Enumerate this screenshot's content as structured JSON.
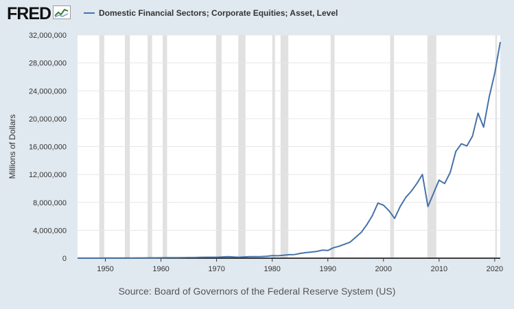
{
  "logo": {
    "text": "FRED",
    "icon": "line-chart-icon"
  },
  "source_text": "Source: Board of Governors of the Federal Reserve System (US)",
  "colors": {
    "background": "#e1e9f0",
    "plot_background": "#ffffff",
    "line": "#4572a7",
    "recession": "#e1e1e1",
    "axis_text": "#333333"
  },
  "chart_data": {
    "type": "line",
    "title": "",
    "xlabel": "",
    "ylabel": "Millions of Dollars",
    "xlim": [
      1945,
      2021
    ],
    "ylim": [
      0,
      32000000
    ],
    "grid": true,
    "legend": "top-left",
    "x_ticks": [
      1950,
      1960,
      1970,
      1980,
      1990,
      2000,
      2010,
      2020
    ],
    "y_ticks": [
      0,
      4000000,
      8000000,
      12000000,
      16000000,
      20000000,
      24000000,
      28000000,
      32000000
    ],
    "y_tick_labels": [
      "0",
      "4,000,000",
      "8,000,000",
      "12,000,000",
      "16,000,000",
      "20,000,000",
      "24,000,000",
      "28,000,000",
      "32,000,000"
    ],
    "recessions": [
      [
        1948.9,
        1949.8
      ],
      [
        1953.5,
        1954.4
      ],
      [
        1957.6,
        1958.4
      ],
      [
        1960.3,
        1961.1
      ],
      [
        1969.9,
        1970.9
      ],
      [
        1973.9,
        1975.2
      ],
      [
        1980.0,
        1980.5
      ],
      [
        1981.5,
        1982.9
      ],
      [
        1990.5,
        1991.2
      ],
      [
        2001.2,
        2001.9
      ],
      [
        2007.9,
        2009.5
      ],
      [
        2020.1,
        2020.4
      ]
    ],
    "series": [
      {
        "name": "Domestic Financial Sectors; Corporate Equities; Asset, Level",
        "x": [
          1945,
          1946,
          1947,
          1948,
          1949,
          1950,
          1951,
          1952,
          1953,
          1954,
          1955,
          1956,
          1957,
          1958,
          1959,
          1960,
          1961,
          1962,
          1963,
          1964,
          1965,
          1966,
          1967,
          1968,
          1969,
          1970,
          1971,
          1972,
          1973,
          1974,
          1975,
          1976,
          1977,
          1978,
          1979,
          1980,
          1981,
          1982,
          1983,
          1984,
          1985,
          1986,
          1987,
          1988,
          1989,
          1990,
          1991,
          1992,
          1993,
          1994,
          1995,
          1996,
          1997,
          1998,
          1999,
          2000,
          2001,
          2002,
          2003,
          2004,
          2005,
          2006,
          2007,
          2008,
          2009,
          2010,
          2011,
          2012,
          2013,
          2014,
          2015,
          2016,
          2017,
          2018,
          2019,
          2020,
          2021
        ],
        "y": [
          10000,
          11000,
          12000,
          12000,
          13000,
          16000,
          19000,
          21000,
          22000,
          28000,
          33000,
          36000,
          37000,
          45000,
          52000,
          55000,
          70000,
          68000,
          80000,
          90000,
          100000,
          100000,
          120000,
          140000,
          140000,
          140000,
          180000,
          220000,
          180000,
          140000,
          190000,
          230000,
          230000,
          240000,
          280000,
          360000,
          340000,
          420000,
          500000,
          520000,
          680000,
          800000,
          880000,
          970000,
          1150000,
          1100000,
          1500000,
          1700000,
          2000000,
          2300000,
          3000000,
          3700000,
          4800000,
          6100000,
          7900000,
          7600000,
          6800000,
          5700000,
          7400000,
          8700000,
          9600000,
          10700000,
          12000000,
          7400000,
          9300000,
          11200000,
          10700000,
          12300000,
          15300000,
          16400000,
          16100000,
          17500000,
          20800000,
          18800000,
          23100000,
          26500000,
          31000000
        ]
      }
    ]
  }
}
